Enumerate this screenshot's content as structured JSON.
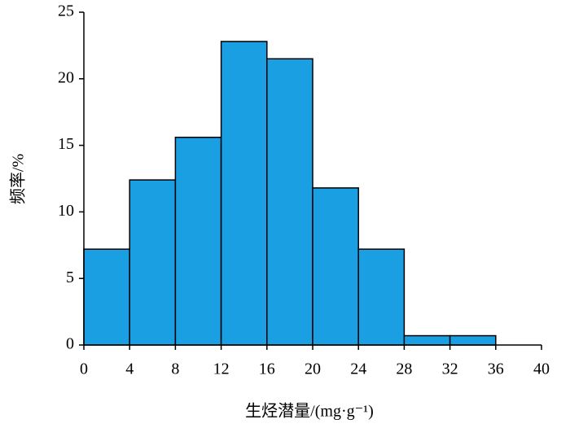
{
  "chart_data": {
    "type": "histogram",
    "xlabel": "生烃潜量/(mg·g⁻¹)",
    "ylabel": "频率/%",
    "bins": [
      0,
      4,
      8,
      12,
      16,
      20,
      24,
      28,
      32,
      36,
      40
    ],
    "values": [
      7.2,
      12.4,
      15.6,
      22.8,
      21.5,
      11.8,
      7.2,
      0.7,
      0.7,
      0
    ],
    "color": "#1a9fe3",
    "xlim": [
      0,
      40
    ],
    "xticks": [
      0,
      4,
      8,
      12,
      16,
      20,
      24,
      28,
      32,
      36,
      40
    ],
    "ylim": [
      0,
      25
    ],
    "yticks": [
      0,
      5,
      10,
      15,
      20,
      25
    ]
  }
}
